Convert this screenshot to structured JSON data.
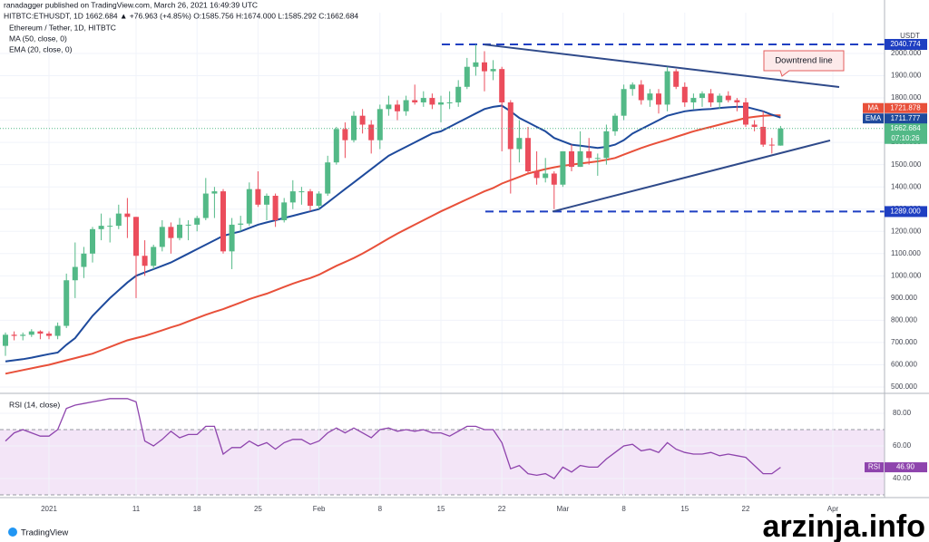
{
  "header": {
    "published": "ranadagger published on TradingView.com, March 26, 2021 16:49:39 UTC",
    "symbol": "HITBTC:ETHUSDT, 1D  1662.684  ▲ +76.963 (+4.85%)  O:1585.756  H:1674.000  L:1585.292  C:1662.684"
  },
  "footer": "TradingView",
  "watermark": "arzinja.info",
  "chart_data": {
    "type": "candlestick",
    "title": "Ethereum / Tether, 1D, HITBTC",
    "y_unit": "USDT",
    "categories": [
      null,
      null,
      null,
      null,
      null,
      "2021",
      null,
      null,
      null,
      null,
      null,
      null,
      null,
      null,
      null,
      "11",
      null,
      null,
      null,
      null,
      null,
      null,
      "18",
      null,
      null,
      null,
      null,
      null,
      null,
      "25",
      null,
      null,
      null,
      null,
      null,
      null,
      "Feb",
      null,
      null,
      null,
      null,
      null,
      null,
      "8",
      null,
      null,
      null,
      null,
      null,
      null,
      "15",
      null,
      null,
      null,
      null,
      null,
      null,
      "22",
      null,
      null,
      null,
      null,
      null,
      null,
      "Mar",
      null,
      null,
      null,
      null,
      null,
      null,
      "8",
      null,
      null,
      null,
      null,
      null,
      null,
      "15",
      null,
      null,
      null,
      null,
      null,
      null,
      "22",
      null,
      null,
      null,
      null,
      null,
      null,
      null,
      null,
      null,
      "Apr"
    ],
    "open": [
      685,
      735,
      730,
      735,
      750,
      740,
      730,
      775,
      980,
      1040,
      1100,
      1210,
      1225,
      1225,
      1280,
      1265,
      1090,
      1045,
      1130,
      1220,
      1170,
      1230,
      1230,
      1260,
      1370,
      1380,
      1110,
      1230,
      1235,
      1390,
      1320,
      1360,
      1250,
      1330,
      1380,
      1380,
      1315,
      1370,
      1510,
      1660,
      1610,
      1720,
      1680,
      1610,
      1750,
      1770,
      1740,
      1790,
      1780,
      1800,
      1770,
      1780,
      1780,
      1850,
      1940,
      1960,
      1920,
      1930,
      1780,
      1570,
      1620,
      1470,
      1440,
      1460,
      1410,
      1560,
      1490,
      1560,
      1530,
      1530,
      1650,
      1720,
      1840,
      1860,
      1790,
      1820,
      1770,
      1920,
      1850,
      1780,
      1800,
      1820,
      1780,
      1810,
      1790,
      1780,
      1680,
      1670,
      1590,
      1585.756,
      null,
      null,
      null,
      null,
      null,
      null
    ],
    "high": [
      745,
      750,
      745,
      760,
      755,
      750,
      790,
      1010,
      1150,
      1130,
      1220,
      1280,
      1260,
      1320,
      1350,
      1265,
      1160,
      1140,
      1250,
      1240,
      1260,
      1250,
      1270,
      1440,
      1400,
      1390,
      1260,
      1270,
      1420,
      1470,
      1370,
      1370,
      1350,
      1430,
      1400,
      1390,
      1380,
      1540,
      1670,
      1690,
      1740,
      1750,
      1700,
      1770,
      1810,
      1790,
      1810,
      1860,
      1830,
      1820,
      1810,
      1830,
      1880,
      1980,
      2040,
      2010,
      1970,
      1940,
      1790,
      1700,
      1670,
      1560,
      1530,
      1470,
      1560,
      1590,
      1650,
      1620,
      1550,
      1680,
      1730,
      1860,
      1870,
      1880,
      1840,
      1840,
      1940,
      1930,
      1870,
      1820,
      1830,
      1840,
      1820,
      1830,
      1800,
      1800,
      1700,
      1740,
      1620,
      1674,
      null,
      null,
      null,
      null,
      null,
      null
    ],
    "low": [
      640,
      710,
      710,
      725,
      715,
      715,
      715,
      765,
      900,
      990,
      1060,
      1160,
      1150,
      1210,
      1170,
      900,
      1000,
      1030,
      1110,
      1100,
      1160,
      1160,
      1200,
      1250,
      1260,
      1100,
      1030,
      1200,
      1225,
      1310,
      1250,
      1220,
      1240,
      1300,
      1320,
      1290,
      1300,
      1360,
      1500,
      1530,
      1600,
      1640,
      1550,
      1570,
      1720,
      1700,
      1720,
      1770,
      1760,
      1750,
      1690,
      1750,
      1760,
      1840,
      1900,
      1830,
      1880,
      1560,
      1370,
      1510,
      1460,
      1410,
      1420,
      1300,
      1400,
      1470,
      1490,
      1500,
      1450,
      1500,
      1630,
      1700,
      1810,
      1770,
      1760,
      1730,
      1740,
      1840,
      1760,
      1750,
      1760,
      1760,
      1750,
      1780,
      1740,
      1670,
      1650,
      1580,
      1550,
      1585.292,
      null,
      null,
      null,
      null,
      null,
      null
    ],
    "close": [
      735,
      730,
      735,
      750,
      740,
      730,
      775,
      980,
      1040,
      1100,
      1210,
      1225,
      1225,
      1280,
      1265,
      1090,
      1045,
      1130,
      1220,
      1170,
      1230,
      1230,
      1260,
      1370,
      1380,
      1110,
      1230,
      1235,
      1390,
      1320,
      1360,
      1250,
      1330,
      1380,
      1380,
      1315,
      1370,
      1510,
      1660,
      1610,
      1720,
      1680,
      1610,
      1750,
      1770,
      1740,
      1790,
      1780,
      1800,
      1770,
      1780,
      1780,
      1850,
      1940,
      1960,
      1920,
      1930,
      1780,
      1570,
      1620,
      1470,
      1440,
      1460,
      1410,
      1560,
      1490,
      1560,
      1530,
      1530,
      1650,
      1720,
      1840,
      1860,
      1790,
      1820,
      1770,
      1920,
      1850,
      1780,
      1800,
      1820,
      1780,
      1810,
      1790,
      1780,
      1680,
      1670,
      1590,
      1586,
      1662.684,
      null,
      null,
      null,
      null,
      null,
      null
    ],
    "up_color": "#53b987",
    "down_color": "#eb4d5c",
    "ylim": [
      475.5,
      2183.4
    ],
    "yticks": [
      {
        "value": 500,
        "label": "500.000"
      },
      {
        "value": 600,
        "label": "600.000"
      },
      {
        "value": 700,
        "label": "700.000"
      },
      {
        "value": 800,
        "label": "800.000"
      },
      {
        "value": 900,
        "label": "900.000"
      },
      {
        "value": 1000,
        "label": "1000.000"
      },
      {
        "value": 1100,
        "label": "1100.000"
      },
      {
        "value": 1200,
        "label": "1200.000"
      },
      {
        "value": 1300,
        "label": "1300.000"
      },
      {
        "value": 1400,
        "label": "1400.000"
      },
      {
        "value": 1500,
        "label": "1500.000"
      },
      {
        "value": 1600,
        "label": "1600.000"
      },
      {
        "value": 1700,
        "label": "1700.000"
      },
      {
        "value": 1800,
        "label": "1800.000"
      },
      {
        "value": 1900,
        "label": "1900.000"
      },
      {
        "value": 2000,
        "label": "2000.000"
      }
    ],
    "grid": true,
    "series": [
      {
        "name": "MA (50, close, 0)",
        "short": "MA",
        "color": "#e8503a",
        "values": [
          560,
          568,
          576,
          584,
          592,
          600,
          610,
          620,
          630,
          640,
          650,
          665,
          680,
          695,
          710,
          720,
          730,
          742,
          755,
          768,
          780,
          795,
          810,
          825,
          838,
          850,
          865,
          880,
          895,
          908,
          920,
          935,
          950,
          965,
          978,
          990,
          1005,
          1025,
          1045,
          1062,
          1080,
          1100,
          1122,
          1145,
          1168,
          1190,
          1210,
          1230,
          1250,
          1270,
          1290,
          1308,
          1326,
          1344,
          1362,
          1380,
          1395,
          1415,
          1430,
          1445,
          1460,
          1470,
          1480,
          1488,
          1495,
          1500,
          1505,
          1510,
          1515,
          1522,
          1530,
          1545,
          1560,
          1575,
          1588,
          1600,
          1612,
          1625,
          1637,
          1650,
          1660,
          1670,
          1680,
          1690,
          1700,
          1710,
          1715,
          1720,
          1722,
          1721.878,
          null,
          null,
          null,
          null,
          null,
          null
        ]
      },
      {
        "name": "EMA (20, close, 0)",
        "short": "EMA",
        "color": "#1e4a9c",
        "values": [
          615,
          620,
          625,
          632,
          640,
          648,
          655,
          690,
          720,
          770,
          820,
          860,
          900,
          935,
          970,
          1000,
          1015,
          1030,
          1045,
          1060,
          1080,
          1100,
          1120,
          1140,
          1160,
          1180,
          1190,
          1200,
          1215,
          1230,
          1240,
          1250,
          1260,
          1270,
          1280,
          1290,
          1300,
          1330,
          1360,
          1390,
          1420,
          1450,
          1480,
          1510,
          1540,
          1560,
          1580,
          1600,
          1620,
          1640,
          1650,
          1670,
          1690,
          1710,
          1730,
          1750,
          1760,
          1765,
          1740,
          1710,
          1690,
          1670,
          1650,
          1620,
          1605,
          1590,
          1585,
          1580,
          1575,
          1580,
          1590,
          1610,
          1640,
          1660,
          1680,
          1700,
          1720,
          1730,
          1740,
          1745,
          1748,
          1750,
          1755,
          1758,
          1760,
          1760,
          1750,
          1740,
          1725,
          1711.777,
          null,
          null,
          null,
          null,
          null,
          null
        ]
      }
    ],
    "levels": [
      {
        "value": 2040.774,
        "color": "#1f3fc2"
      },
      {
        "value": 1289,
        "label": "1289.000",
        "color": "#1f3fc2"
      }
    ],
    "trendlines": [
      {
        "start": 2040,
        "end": 1849,
        "color": "#2f4a8a"
      },
      {
        "start": 1289,
        "end": 1609,
        "color": "#2f4a8a"
      }
    ],
    "annotation": "Downtrend line",
    "timer": "07:10:26",
    "rsi": {
      "type": "line",
      "name": "RSI (14, close)",
      "short": "RSI",
      "color": "#8e44ad",
      "values": [
        63,
        68,
        70,
        68,
        66,
        66,
        70,
        83,
        85,
        86,
        87,
        88,
        89,
        89,
        89,
        87,
        63,
        60,
        64,
        69,
        65,
        67,
        67,
        72,
        72,
        55,
        59,
        59,
        63,
        60,
        62,
        58,
        62,
        64,
        64,
        61,
        63,
        68,
        71,
        68,
        71,
        68,
        65,
        70,
        71,
        69,
        70,
        69,
        70,
        68,
        68,
        66,
        69,
        72,
        72,
        70,
        70,
        62,
        46,
        48,
        43,
        42,
        43,
        40,
        47,
        44,
        48,
        47,
        47,
        52,
        56,
        60,
        61,
        57,
        58,
        56,
        62,
        58,
        56,
        55,
        55,
        56,
        54,
        55,
        54,
        53,
        48,
        43,
        43,
        46.9,
        null,
        null,
        null,
        null,
        null,
        null
      ],
      "value_label": "46.90",
      "ylim": [
        28.33,
        90.56
      ],
      "yticks": [
        {
          "value": 40,
          "label": "40.00"
        },
        {
          "value": 60,
          "label": "60.00"
        },
        {
          "value": 80,
          "label": "80.00"
        }
      ],
      "band": [
        30,
        70
      ],
      "band_color": "#f3e5f7"
    }
  }
}
